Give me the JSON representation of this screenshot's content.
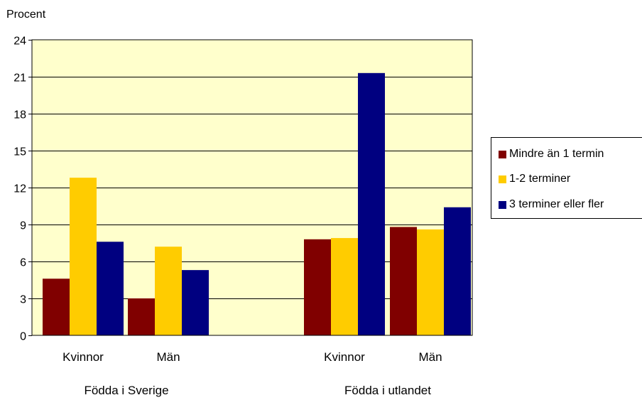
{
  "chart_data": {
    "type": "bar",
    "title": "",
    "ylabel": "Procent",
    "xlabel": "",
    "ylim": [
      0,
      24
    ],
    "yticks": [
      0,
      3,
      6,
      9,
      12,
      15,
      18,
      21,
      24
    ],
    "groups": [
      {
        "label": "Födda i Sverige",
        "categories": [
          "Kvinnor",
          "Män"
        ]
      },
      {
        "label": "Födda i utlandet",
        "categories": [
          "Kvinnor",
          "Män"
        ]
      }
    ],
    "categories": [
      "Kvinnor",
      "Män",
      "Kvinnor",
      "Män"
    ],
    "series": [
      {
        "name": "Mindre än 1 termin",
        "color": "#800000",
        "values": [
          4.6,
          3.0,
          7.8,
          8.8
        ]
      },
      {
        "name": "1-2 terminer",
        "color": "#FFCC00",
        "values": [
          12.8,
          7.2,
          7.9,
          8.6
        ]
      },
      {
        "name": "3 terminer eller fler",
        "color": "#000080",
        "values": [
          7.6,
          5.3,
          21.3,
          10.4
        ]
      }
    ],
    "plot_background": "#FFFFCC",
    "grid": true,
    "legend_position": "right"
  }
}
